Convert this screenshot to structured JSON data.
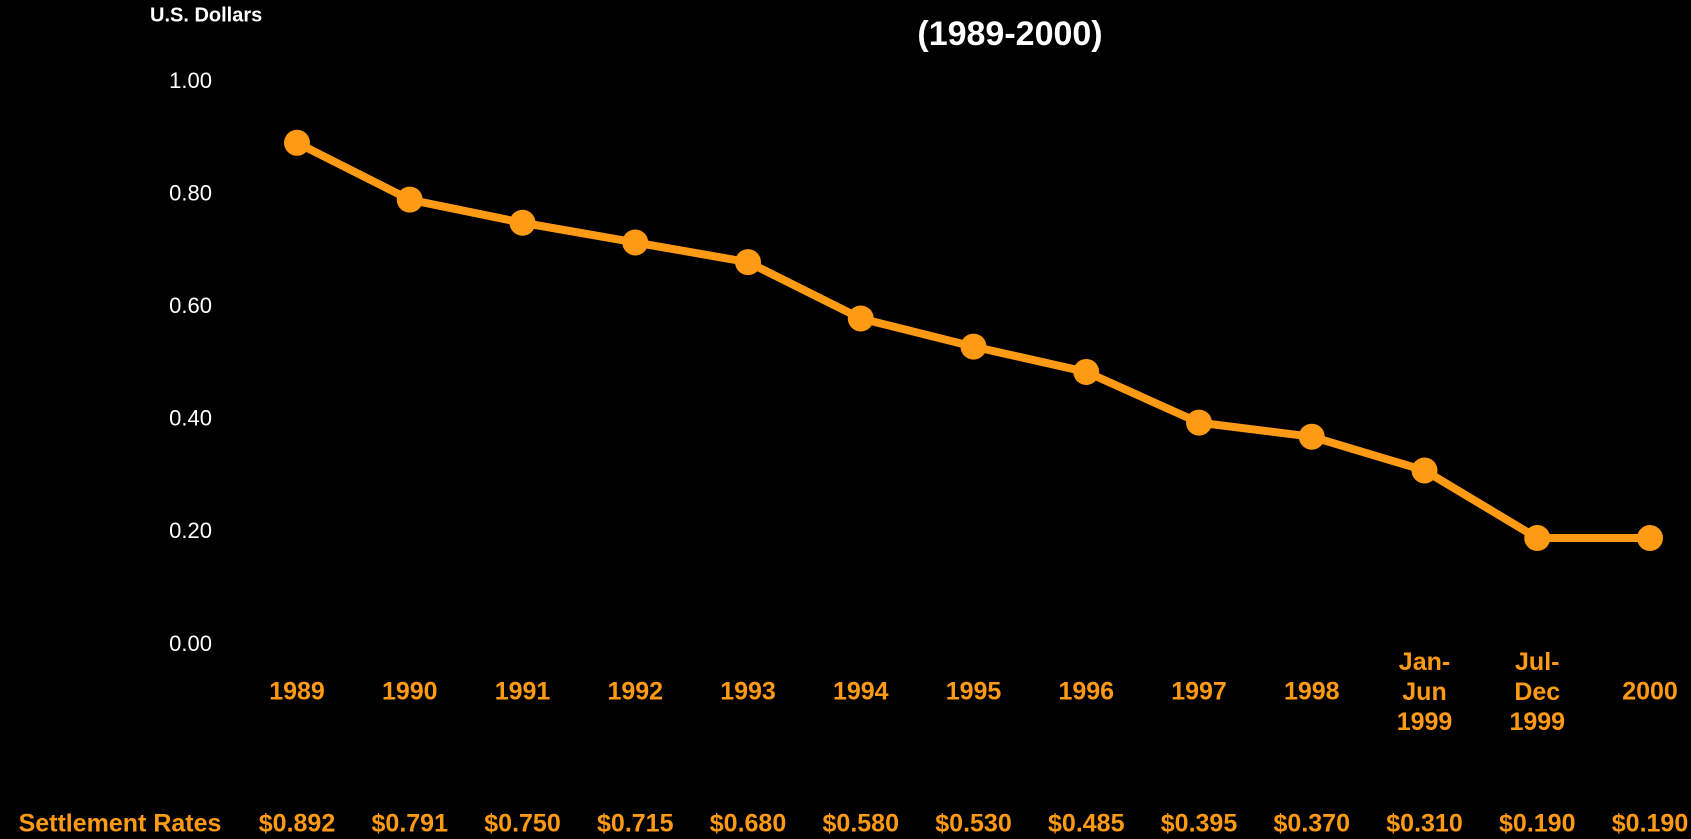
{
  "chart_data": {
    "type": "line",
    "title": "(1989-2000)",
    "y_label": "U.S. Dollars",
    "row_label": "Settlement Rates",
    "categories": [
      "1989",
      "1990",
      "1991",
      "1992",
      "1993",
      "1994",
      "1995",
      "1996",
      "1997",
      "1998",
      "Jan-\nJun\n1999",
      "Jul-\nDec\n1999",
      "2000"
    ],
    "series": [
      {
        "name": "Settlement Rates",
        "color": "#ff9a14",
        "values": [
          0.892,
          0.791,
          0.75,
          0.715,
          0.68,
          0.58,
          0.53,
          0.485,
          0.395,
          0.37,
          0.31,
          0.19,
          0.19
        ],
        "value_labels": [
          "$0.892",
          "$0.791",
          "$0.750",
          "$0.715",
          "$0.680",
          "$0.580",
          "$0.530",
          "$0.485",
          "$0.395",
          "$0.370",
          "$0.310",
          "$0.190",
          "$0.190"
        ]
      }
    ],
    "ylim": [
      0,
      1
    ],
    "yticks": [
      {
        "value": 0,
        "label": "0.00"
      },
      {
        "value": 0.2,
        "label": "0.20"
      },
      {
        "value": 0.4,
        "label": "0.40"
      },
      {
        "value": 0.6,
        "label": "0.60"
      },
      {
        "value": 0.8,
        "label": "0.80"
      },
      {
        "value": 1,
        "label": "1.00"
      }
    ],
    "grid": false
  }
}
